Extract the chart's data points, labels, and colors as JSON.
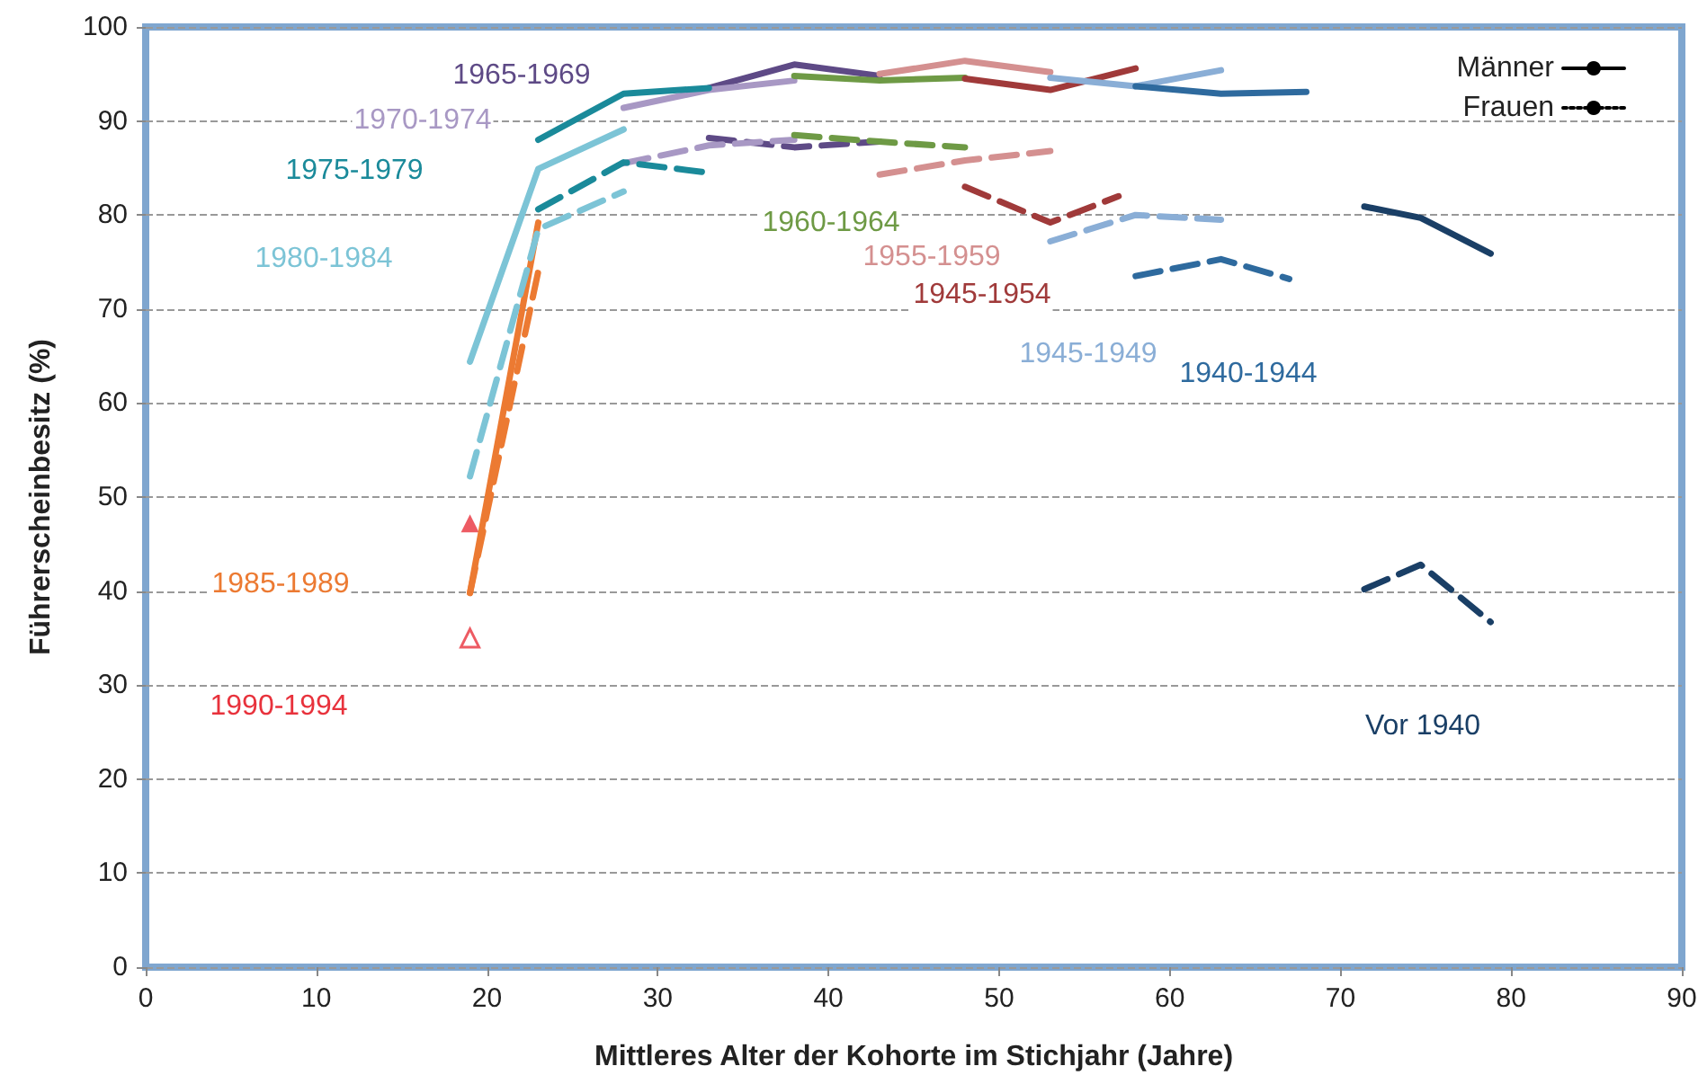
{
  "chart_data": {
    "type": "line",
    "xlabel": "Mittleres Alter der Kohorte im Stichjahr (Jahre)",
    "ylabel": "Führerscheinbesitz (%)",
    "xlim": [
      0,
      90
    ],
    "xticks": [
      0,
      10,
      20,
      30,
      40,
      50,
      60,
      70,
      80,
      90
    ],
    "ylim": [
      0,
      100
    ],
    "yticks": [
      0,
      10,
      20,
      30,
      40,
      50,
      60,
      70,
      80,
      90,
      100
    ],
    "grid": "y",
    "legend": "top right",
    "annotations": [
      "1965-1969",
      "1970-1974",
      "1975-1979",
      "1980-1984",
      "1985-1989",
      "1990-1994",
      "1960-1964",
      "1955-1959",
      "1945-1954",
      "1945-1949",
      "1940-1944",
      "Vor 1940"
    ],
    "series": [
      {
        "color": "#5e4a86",
        "x": [
          33,
          38,
          43
        ],
        "values": [
          93.5,
          96,
          94.8
        ]
      },
      {
        "color": "#a898c4",
        "x": [
          28,
          33,
          38
        ],
        "values": [
          91.4,
          93.3,
          94.3
        ]
      },
      {
        "color": "#1a8a9a",
        "x": [
          23,
          28,
          33
        ],
        "values": [
          88,
          92.9,
          93.5
        ]
      },
      {
        "color": "#7cc4d6",
        "x": [
          19,
          23,
          28
        ],
        "values": [
          64.4,
          84.9,
          89.1
        ]
      },
      {
        "color": "#ec7a32",
        "x": [
          19,
          23
        ],
        "values": [
          39.8,
          79.2
        ]
      },
      {
        "type": "scatter",
        "marker": "triangle",
        "color": "#e8323c",
        "x": [
          19
        ],
        "values": [
          47.2
        ]
      },
      {
        "color": "#6e9a45",
        "x": [
          38,
          43,
          48
        ],
        "values": [
          94.8,
          94.3,
          94.6
        ]
      },
      {
        "color": "#d49090",
        "x": [
          43,
          48,
          53
        ],
        "values": [
          95,
          96.4,
          95.2
        ]
      },
      {
        "color": "#a03a3a",
        "x": [
          48,
          53,
          58
        ],
        "values": [
          94.5,
          93.3,
          95.6
        ]
      },
      {
        "color": "#8aaed6",
        "x": [
          53,
          58,
          63
        ],
        "values": [
          94.6,
          93.7,
          95.4
        ]
      },
      {
        "color": "#2e6a9e",
        "x": [
          58,
          63,
          68
        ],
        "values": [
          93.7,
          92.9,
          93.1
        ]
      },
      {
        "color": "#1a3f66",
        "x": [
          71.4,
          74.7,
          78.8
        ],
        "values": [
          80.9,
          79.7,
          75.9
        ]
      },
      {
        "color": "#5e4a86",
        "line_style": "dashed",
        "x": [
          33,
          38,
          43
        ],
        "values": [
          88.2,
          87.2,
          87.8
        ]
      },
      {
        "color": "#a898c4",
        "line_style": "dashed",
        "x": [
          28,
          33,
          38
        ],
        "values": [
          85.5,
          87.4,
          88
        ]
      },
      {
        "color": "#1a8a9a",
        "line_style": "dashed",
        "x": [
          23,
          28,
          33
        ],
        "values": [
          80.6,
          85.6,
          84.5
        ]
      },
      {
        "color": "#7cc4d6",
        "line_style": "dashed",
        "x": [
          19,
          23,
          28
        ],
        "values": [
          52.2,
          78.5,
          82.5
        ]
      },
      {
        "color": "#ec7a32",
        "line_style": "dashed",
        "x": [
          19,
          23
        ],
        "values": [
          39.8,
          74
        ]
      },
      {
        "type": "scatter",
        "marker": "triangle",
        "line_style": "dashed",
        "color": "#e8323c",
        "x": [
          19
        ],
        "values": [
          35
        ]
      },
      {
        "color": "#6e9a45",
        "line_style": "dashed",
        "x": [
          38,
          43,
          48
        ],
        "values": [
          88.5,
          87.8,
          87.2
        ]
      },
      {
        "color": "#d49090",
        "line_style": "dashed",
        "x": [
          43,
          48,
          53
        ],
        "values": [
          84.3,
          85.8,
          86.8
        ]
      },
      {
        "color": "#a03a3a",
        "line_style": "dashed",
        "x": [
          48,
          53,
          57
        ],
        "values": [
          83,
          79.2,
          82
        ]
      },
      {
        "color": "#8aaed6",
        "line_style": "dashed",
        "x": [
          53,
          58,
          63
        ],
        "values": [
          77.2,
          80,
          79.5
        ]
      },
      {
        "color": "#2e6a9e",
        "line_style": "dashed",
        "x": [
          58,
          63,
          67
        ],
        "values": [
          73.5,
          75.3,
          73.2
        ]
      },
      {
        "color": "#1a3f66",
        "line_style": "dashed",
        "x": [
          71.4,
          74.7,
          78.8
        ],
        "values": [
          40.2,
          42.8,
          36.7
        ]
      },
      {
        "name": "Männer",
        "color": "#000000"
      },
      {
        "name": "Frauen",
        "color": "#000000",
        "line_style": "dotted"
      }
    ]
  }
}
